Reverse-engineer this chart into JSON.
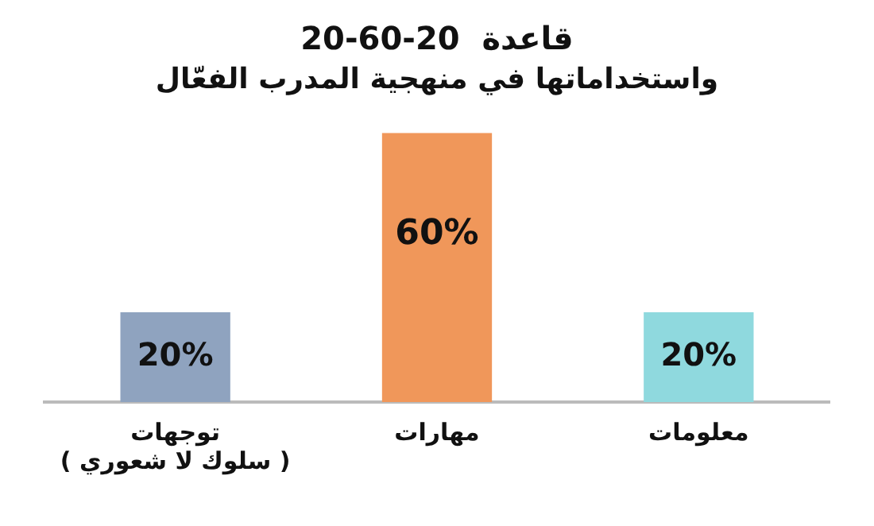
{
  "chart_data": {
    "type": "bar",
    "title": "قاعدة  20-60-20",
    "subtitle": "واستخداماتها في منهجية المدرب الفعّال",
    "categories": [
      "توجهات\n( سلوك لا شعوري )",
      "مهارات",
      "معلومات"
    ],
    "values": [
      20,
      60,
      20
    ],
    "colors": [
      "#8fa3bf",
      "#f0975a",
      "#8fd9de"
    ],
    "value_labels": [
      "20%",
      "60%",
      "20%"
    ],
    "grid": false,
    "legend": false
  }
}
